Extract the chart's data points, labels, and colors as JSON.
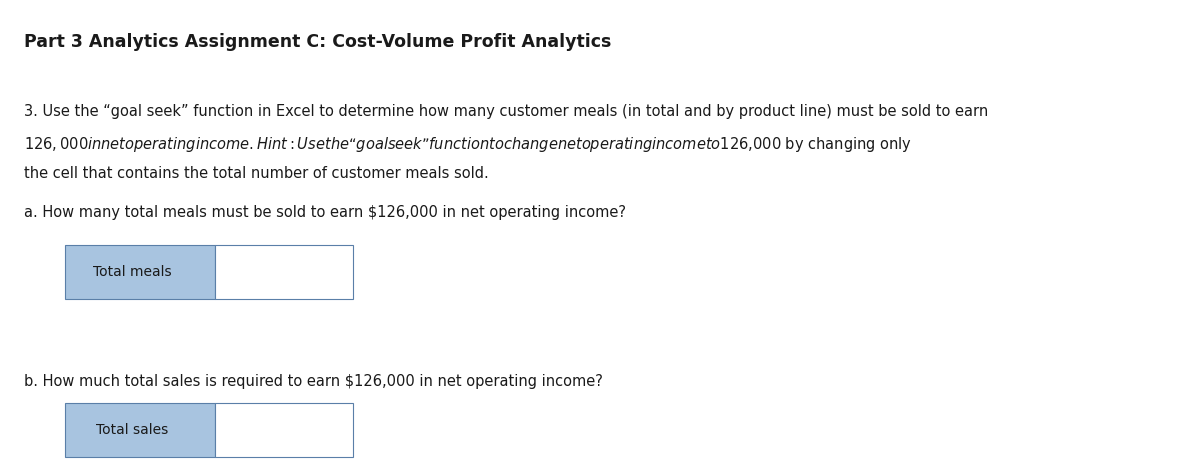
{
  "title": "Part 3 Analytics Assignment C: Cost-Volume Profit Analytics",
  "title_fontsize": 12.5,
  "body_fontsize": 10.5,
  "background_color": "#ffffff",
  "text_color": "#1a1a1a",
  "para_line1": "3. Use the “goal seek” function in Excel to determine how many customer meals (in total and by product line) must be sold to earn",
  "para_line2": "$126,000 in net operating income. Hint: Use the “goal seek” function to change net operating income to $126,000 by changing only",
  "para_line3": "the cell that contains the total number of customer meals sold.",
  "question_a": "a. How many total meals must be sold to earn $126,000 in net operating income?",
  "label_a": "Total meals",
  "question_b": "b. How much total sales is required to earn $126,000 in net operating income?",
  "label_b": "Total sales",
  "label_bg_color": "#a8c4e0",
  "input_bg_color": "#ffffff",
  "box_border_color": "#5a7fa8"
}
